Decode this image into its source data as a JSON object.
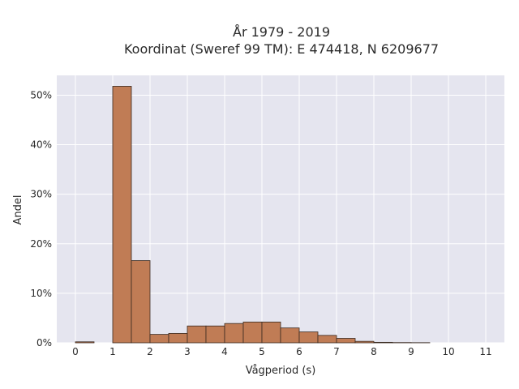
{
  "chart_data": {
    "type": "bar",
    "title": "År 1979 - 2019",
    "subtitle": "Koordinat (Sweref 99 TM): E 474418, N 6209677",
    "xlabel": "Vågperiod (s)",
    "ylabel": "Andel",
    "xlim": [
      -0.5,
      11.5
    ],
    "ylim": [
      0,
      0.54
    ],
    "x_ticks": [
      0,
      1,
      2,
      3,
      4,
      5,
      6,
      7,
      8,
      9,
      10,
      11
    ],
    "x_tick_labels": [
      "0",
      "1",
      "2",
      "3",
      "4",
      "5",
      "6",
      "7",
      "8",
      "9",
      "10",
      "11"
    ],
    "y_ticks": [
      0,
      0.1,
      0.2,
      0.3,
      0.4,
      0.5
    ],
    "y_tick_labels": [
      "0%",
      "10%",
      "20%",
      "30%",
      "40%",
      "50%"
    ],
    "bin_width": 0.5,
    "bin_starts": [
      0,
      1,
      1.5,
      2,
      2.5,
      3,
      3.5,
      4,
      4.5,
      5,
      5.5,
      6,
      6.5,
      7,
      7.5,
      8,
      8.5,
      9
    ],
    "values": [
      0.002,
      0.518,
      0.166,
      0.017,
      0.019,
      0.034,
      0.034,
      0.039,
      0.042,
      0.042,
      0.03,
      0.022,
      0.015,
      0.009,
      0.003,
      0.001,
      0.0005,
      0.0003
    ],
    "grid": true,
    "colors": {
      "bar_fill": "#c07c55",
      "bar_edge": "#3a2a20",
      "plot_bg": "#e5e5ef",
      "grid": "#ffffff",
      "text": "#2a2a2a"
    }
  }
}
